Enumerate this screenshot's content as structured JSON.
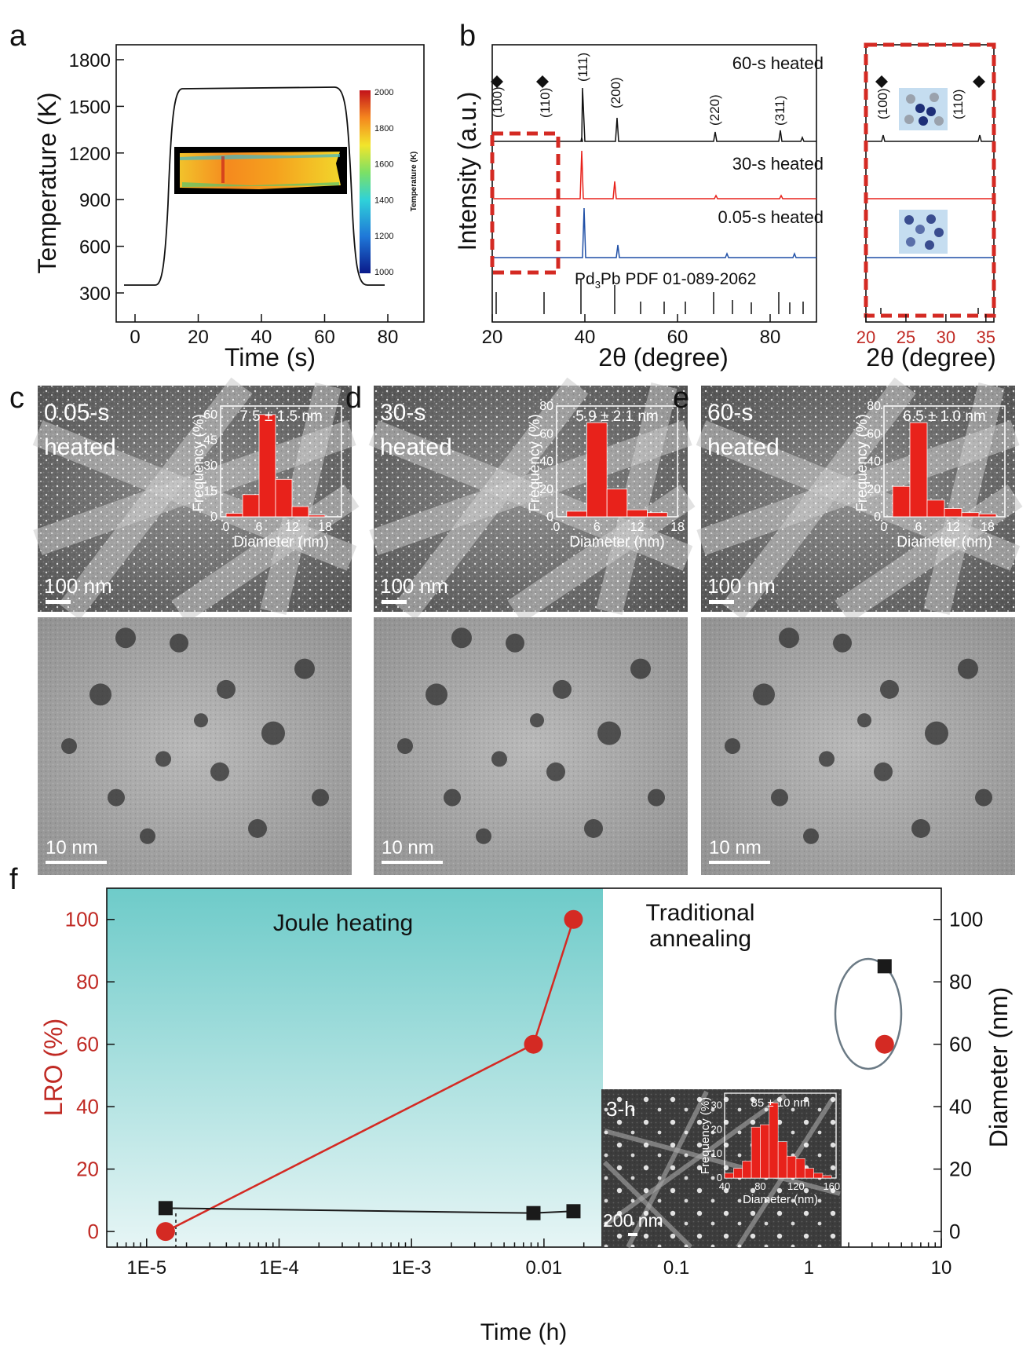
{
  "panel_letters": {
    "a": "a",
    "b": "b",
    "c": "c",
    "d": "d",
    "e": "e",
    "f": "f"
  },
  "panel_a": {
    "xlabel": "Time (s)",
    "ylabel": "Temperature (K)",
    "xticks": [
      "0",
      "20",
      "40",
      "60",
      "80"
    ],
    "yticks": [
      "300",
      "600",
      "900",
      "1200",
      "1500",
      "1800"
    ],
    "colorbar": {
      "label": "Temperature (K)",
      "ticks": [
        "1000",
        "1200",
        "1400",
        "1600",
        "1800",
        "2000"
      ]
    }
  },
  "panel_b": {
    "ylabel": "Intensity (a.u.)",
    "xlabel": "2θ (degree)",
    "xticks": [
      "20",
      "40",
      "60",
      "80"
    ],
    "series": [
      {
        "name": "60-s heated",
        "color": "#111111"
      },
      {
        "name": "30-s heated",
        "color": "#e8221b"
      },
      {
        "name": "0.05-s heated",
        "color": "#1f4fa6"
      }
    ],
    "peaks": [
      "(100)",
      "(110)",
      "(111)",
      "(200)",
      "(220)",
      "(311)"
    ],
    "reference": {
      "label_pre": "Pd",
      "label_sub": "3",
      "label_post": "Pb PDF 01-089-2062"
    },
    "zoom": {
      "xlabel": "2θ (degree)",
      "xticks": [
        "20",
        "25",
        "30",
        "35"
      ],
      "peaks": [
        "(100)",
        "(110)"
      ]
    }
  },
  "sem_panels": [
    {
      "label1": "0.05-s",
      "label2": "heated",
      "inset_title": "7.5 ± 1.5 nm",
      "yticks": [
        "0",
        "15",
        "30",
        "45",
        "60"
      ],
      "xticks": [
        "0",
        "6",
        "12",
        "18"
      ],
      "scale_sem": "100 nm",
      "scale_tem": "10 nm",
      "chart_data": {
        "type": "bar",
        "xlabel": "Diameter (nm)",
        "ylabel": "Frequency (%)",
        "bins": [
          1.5,
          4.5,
          7.5,
          10.5,
          13.5,
          16.5
        ],
        "values": [
          2,
          13,
          60,
          22,
          6,
          1
        ],
        "ylim": [
          0,
          65
        ],
        "xlim": [
          -1,
          21
        ]
      }
    },
    {
      "label1": "30-s",
      "label2": "heated",
      "inset_title": "5.9 ± 2.1 nm",
      "yticks": [
        "0",
        "20",
        "40",
        "60",
        "80"
      ],
      "xticks": [
        "0",
        "6",
        "12",
        "18"
      ],
      "scale_sem": "100 nm",
      "scale_tem": "10 nm",
      "chart_data": {
        "type": "bar",
        "xlabel": "Diameter (nm)",
        "ylabel": "Frequency (%)",
        "bins": [
          3,
          6,
          9,
          12,
          15
        ],
        "values": [
          4,
          68,
          20,
          5,
          3
        ],
        "ylim": [
          0,
          80
        ],
        "xlim": [
          0,
          18
        ]
      }
    },
    {
      "label1": "60-s",
      "label2": "heated",
      "inset_title": "6.5 ± 1.0 nm",
      "yticks": [
        "0",
        "20",
        "40",
        "60",
        "80"
      ],
      "xticks": [
        "0",
        "6",
        "12",
        "18"
      ],
      "scale_sem": "100 nm",
      "scale_tem": "10 nm",
      "chart_data": {
        "type": "bar",
        "xlabel": "Diameter (nm)",
        "ylabel": "Frequency (%)",
        "bins": [
          3,
          6,
          9,
          12,
          15,
          18
        ],
        "values": [
          22,
          68,
          12,
          6,
          3,
          2
        ],
        "ylim": [
          0,
          80
        ],
        "xlim": [
          0,
          21
        ]
      }
    }
  ],
  "panel_f": {
    "ylabel_left": "LRO (%)",
    "ylabel_right": "Diameter (nm)",
    "xlabel": "Time (h)",
    "xticks": [
      "1E-5",
      "1E-4",
      "1E-3",
      "0.01",
      "0.1",
      "1",
      "10"
    ],
    "yticks_left": [
      "0",
      "20",
      "40",
      "60",
      "80",
      "100"
    ],
    "yticks_right": [
      "0",
      "20",
      "40",
      "60",
      "80",
      "100"
    ],
    "region_joule": "Joule heating",
    "region_trad_1": "Traditional",
    "region_trad_2": "annealing",
    "chart_data": {
      "type": "scatter",
      "xscale": "log",
      "xlim": [
        5e-06,
        10
      ],
      "ylim": [
        -5,
        110
      ],
      "series": [
        {
          "name": "LRO (%)",
          "color": "#d42a23",
          "x": [
            1.39e-05,
            0.00833,
            0.0167
          ],
          "y": [
            0,
            60,
            100
          ]
        },
        {
          "name": "Diameter (nm)",
          "color": "#1a1a1a",
          "x": [
            1.39e-05,
            0.00833,
            0.0167
          ],
          "y": [
            7.5,
            5.9,
            6.5
          ]
        }
      ],
      "annealing_points": [
        {
          "x": 3,
          "lro": 60,
          "diameter": 85
        }
      ]
    },
    "inset": {
      "label": "3-h",
      "title": "85 ± 10 nm",
      "scale": "200 nm",
      "yticks": [
        "0",
        "10",
        "20",
        "30"
      ],
      "xticks": [
        "40",
        "80",
        "120",
        "160"
      ],
      "chart_data": {
        "type": "bar",
        "xlabel": "Diameter (nm)",
        "ylabel": "Frequency (%)",
        "bins": [
          45,
          55,
          65,
          75,
          85,
          95,
          105,
          115,
          125,
          135,
          145,
          155
        ],
        "values": [
          2,
          4,
          7,
          21,
          22,
          31,
          15,
          9,
          8,
          4,
          2,
          1
        ],
        "ylim": [
          0,
          35
        ],
        "xlim": [
          40,
          165
        ]
      }
    }
  }
}
